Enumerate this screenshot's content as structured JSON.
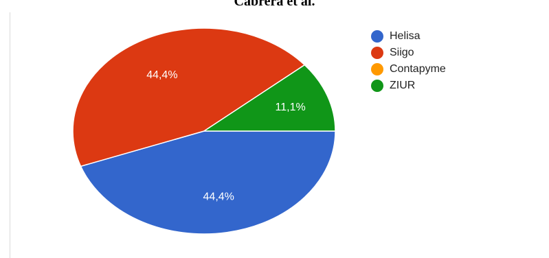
{
  "header": {
    "title": "Cabrera et al."
  },
  "chart_data": {
    "type": "pie",
    "legend_position": "right",
    "slices": [
      {
        "name": "Helisa",
        "value": 44.4,
        "label": "44,4%",
        "color": "#3366cc"
      },
      {
        "name": "Siigo",
        "value": 44.4,
        "label": "44,4%",
        "color": "#dc3912"
      },
      {
        "name": "Contapyme",
        "value": 0,
        "label": "",
        "color": "#ff9900"
      },
      {
        "name": "ZIUR",
        "value": 11.1,
        "label": "11,1%",
        "color": "#109618"
      }
    ]
  }
}
